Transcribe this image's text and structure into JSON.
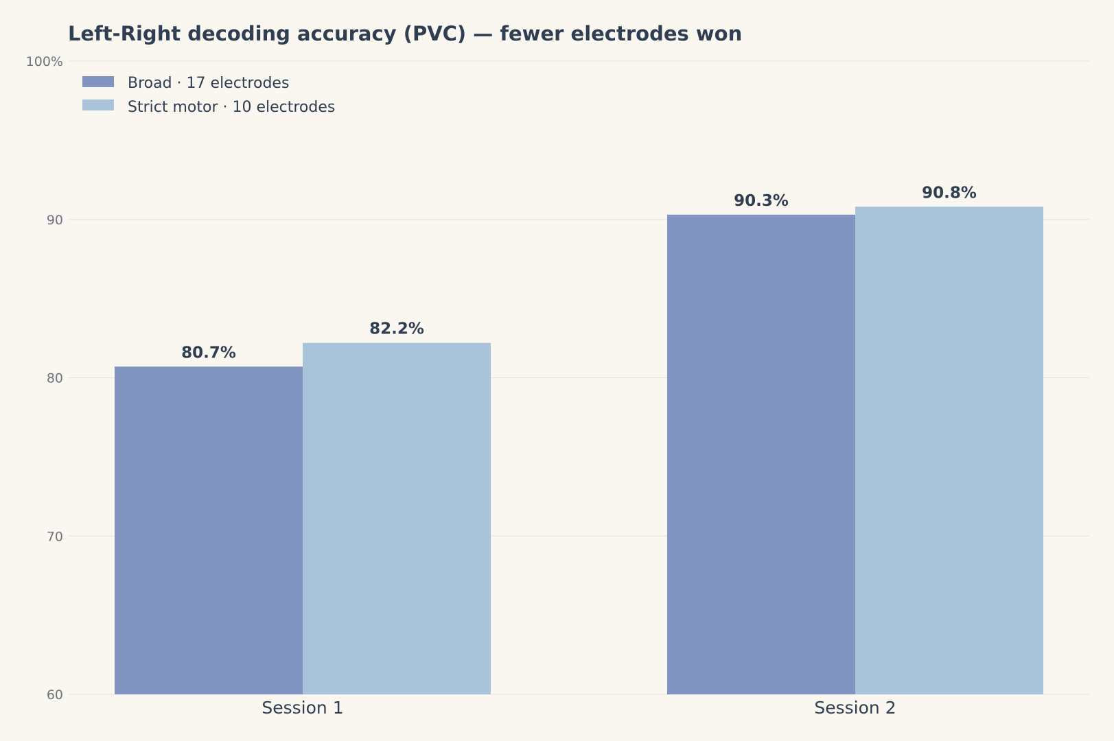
{
  "chart_data": {
    "type": "bar",
    "title": "Left-Right decoding accuracy (PVC) — fewer electrodes won",
    "xlabel": "",
    "ylabel": "",
    "categories": [
      "Session 1",
      "Session 2"
    ],
    "series": [
      {
        "name": "Broad · 17 electrodes",
        "values": [
          80.7,
          90.3
        ],
        "color": "#8093c1"
      },
      {
        "name": "Strict motor · 10 electrodes",
        "values": [
          82.2,
          90.8
        ],
        "color": "#a9c4da"
      }
    ],
    "data_labels": [
      [
        "80.7%",
        "90.3%"
      ],
      [
        "82.2%",
        "90.8%"
      ]
    ],
    "ylim": [
      60,
      100
    ],
    "yticks": [
      {
        "value": 60,
        "label": "60"
      },
      {
        "value": 70,
        "label": "70"
      },
      {
        "value": 80,
        "label": "80"
      },
      {
        "value": 90,
        "label": "90"
      },
      {
        "value": 100,
        "label": "100%"
      }
    ],
    "grid": true,
    "legend_position": "top-left"
  }
}
